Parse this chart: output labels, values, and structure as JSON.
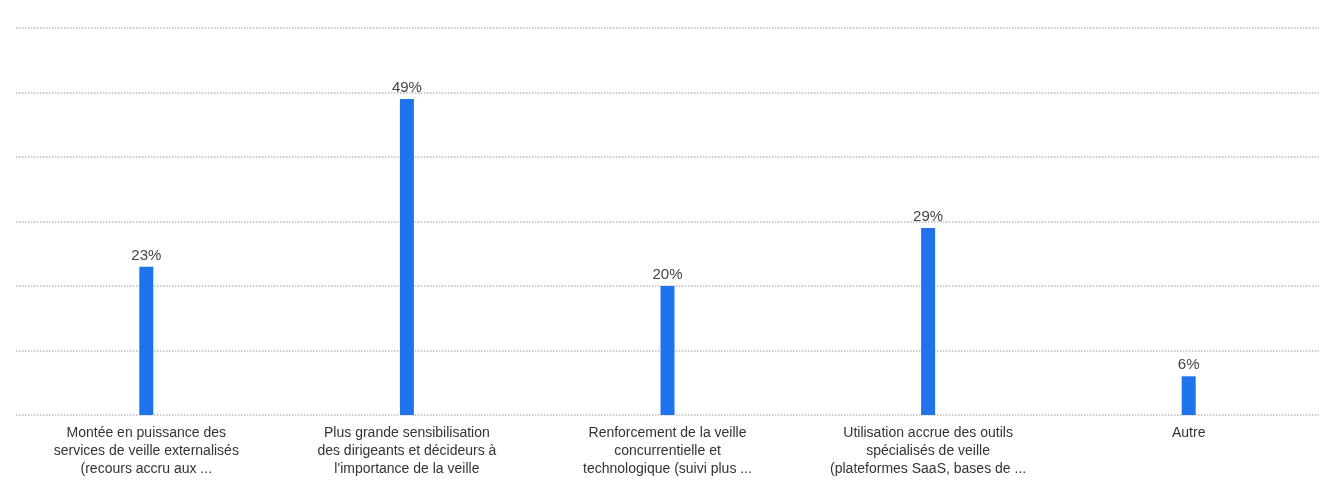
{
  "chart_data": {
    "type": "bar",
    "categories": [
      "Montée en puissance des\nservices de veille externalisés\n(recours accru aux ...",
      "Plus grande sensibilisation\ndes dirigeants et décideurs à\nl'importance de la veille",
      "Renforcement de la veille\nconcurrentielle et\ntechnologique (suivi plus ...",
      "Utilisation accrue des outils\nspécialisés de veille\n(plateformes SaaS, bases de ...",
      "Autre"
    ],
    "values": [
      23,
      49,
      20,
      29,
      6
    ],
    "value_labels": [
      "23%",
      "49%",
      "20%",
      "29%",
      "6%"
    ],
    "color": "#1f73ec",
    "ylim": [
      0,
      60
    ],
    "yticks": [
      {
        "value": 0,
        "label": null
      },
      {
        "value": 10,
        "label": null
      },
      {
        "value": 20,
        "label": null
      },
      {
        "value": 30,
        "label": null
      },
      {
        "value": 40,
        "label": null
      },
      {
        "value": 50,
        "label": null
      },
      {
        "value": 60,
        "label": null
      }
    ],
    "grid": "y",
    "line_style": "dotted",
    "tick_labels": "x"
  }
}
